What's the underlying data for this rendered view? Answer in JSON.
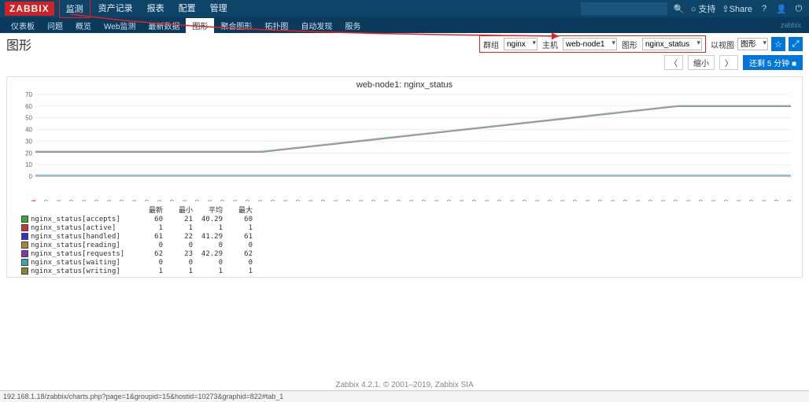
{
  "logo": "ZABBIX",
  "topnav": [
    "监测",
    "资产记录",
    "报表",
    "配置",
    "管理"
  ],
  "topnav_active_index": 0,
  "topbar_right": {
    "support": "支持",
    "share": "Share"
  },
  "subnav": [
    "仪表板",
    "问题",
    "概览",
    "Web监测",
    "最新数据",
    "图形",
    "聚合图形",
    "拓扑图",
    "自动发现",
    "服务"
  ],
  "subnav_active_index": 5,
  "subbar_right": "zabbix",
  "page_title": "图形",
  "filters": {
    "group_label": "群组",
    "group_value": "nginx",
    "host_label": "主机",
    "host_value": "web-node1",
    "graph_label": "图形",
    "graph_value": "nginx_status",
    "view_label": "以视图",
    "view_value": "图形"
  },
  "shrink_label": "缩小",
  "timer_label": "还剩 5 分钟",
  "chart": {
    "title": "web-node1: nginx_status",
    "ylim": [
      0,
      70
    ],
    "ytick_step": 10,
    "y_ticks": [
      0,
      10,
      20,
      30,
      40,
      50,
      60,
      70
    ],
    "grid_color": "#dcdcdc",
    "bg": "#ffffff",
    "x_start_label": "05-23 16:31",
    "x_end_label": "05-23 16:36",
    "x_ticks": [
      "16:31:05",
      "16:31:10",
      "16:31:15",
      "16:31:20",
      "16:31:25",
      "16:31:30",
      "16:31:35",
      "16:31:40",
      "16:31:45",
      "16:31:50",
      "16:31:55",
      "16:32:00",
      "16:32:05",
      "16:32:10",
      "16:32:15",
      "16:32:20",
      "16:32:25",
      "16:32:30",
      "16:32:35",
      "16:32:40",
      "16:32:45",
      "16:32:50",
      "16:32:55",
      "16:33:00",
      "16:33:05",
      "16:33:10",
      "16:33:15",
      "16:33:20",
      "16:33:25",
      "16:33:30",
      "16:33:35",
      "16:33:40",
      "16:33:45",
      "16:33:50",
      "16:33:55",
      "16:34:00",
      "16:34:05",
      "16:34:10",
      "16:34:15",
      "16:34:20",
      "16:34:25",
      "16:34:30",
      "16:34:35",
      "16:34:40",
      "16:34:45",
      "16:34:50",
      "16:34:55",
      "16:35:00",
      "16:35:05",
      "16:35:10",
      "16:35:15",
      "16:35:20",
      "16:35:25",
      "16:35:30",
      "16:35:35",
      "16:35:40",
      "16:35:45",
      "16:35:50",
      "16:35:55",
      "16:36:00",
      "16:36:05"
    ],
    "x_red_indices": [
      0,
      11,
      23,
      35,
      47,
      59,
      60
    ],
    "series_top": {
      "color_a": "#7fbf7f",
      "color_b": "#a07fa0",
      "points": [
        [
          0,
          21
        ],
        [
          0.3,
          21
        ],
        [
          0.85,
          60
        ],
        [
          1,
          60
        ]
      ]
    },
    "series_low": [
      {
        "color": "#c94a4a",
        "y": 0
      },
      {
        "color": "#7f7fbf",
        "y": 0
      },
      {
        "color": "#bfa060",
        "y": 1
      },
      {
        "color": "#60bfbf",
        "y": 1
      }
    ]
  },
  "legend": {
    "headers": [
      "最小",
      "平均",
      "最大"
    ],
    "rows": [
      {
        "color": "#33aa33",
        "name": "nginx_status[accepts]",
        "v": [
          "60",
          "21",
          "40.29",
          "60"
        ]
      },
      {
        "color": "#cc3333",
        "name": "nginx_status[active]",
        "v": [
          "1",
          "1",
          "1",
          "1"
        ]
      },
      {
        "color": "#3333cc",
        "name": "nginx_status[handled]",
        "v": [
          "61",
          "22",
          "41.29",
          "61"
        ]
      },
      {
        "color": "#aa8833",
        "name": "nginx_status[reading]",
        "v": [
          "0",
          "0",
          "0",
          "0"
        ]
      },
      {
        "color": "#8833aa",
        "name": "nginx_status[requests]",
        "v": [
          "62",
          "23",
          "42.29",
          "62"
        ]
      },
      {
        "color": "#33aaaa",
        "name": "nginx_status[waiting]",
        "v": [
          "0",
          "0",
          "0",
          "0"
        ]
      },
      {
        "color": "#888833",
        "name": "nginx_status[writing]",
        "v": [
          "1",
          "1",
          "1",
          "1"
        ]
      }
    ]
  },
  "footer": "Zabbix 4.2.1. © 2001–2019, Zabbix SIA",
  "statusbar": "192.168.1.18/zabbix/charts.php?page=1&groupid=15&hostid=10273&graphid=822#tab_1"
}
